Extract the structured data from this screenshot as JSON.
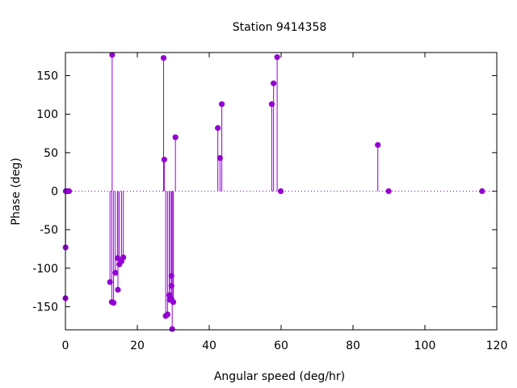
{
  "chart_data": {
    "type": "scatter",
    "style": "impulses with points",
    "title": "Station 9414358",
    "xlabel": "Angular speed (deg/hr)",
    "ylabel": "Phase (deg)",
    "xlim": [
      0,
      120
    ],
    "ylim": [
      -180,
      180
    ],
    "x_ticks": [
      0,
      20,
      40,
      60,
      80,
      100,
      120
    ],
    "y_ticks": [
      -150,
      -100,
      -50,
      0,
      50,
      100,
      150
    ],
    "zero_line": "dotted",
    "grid": false,
    "legend": "none",
    "color": "#9400d3",
    "series": [
      {
        "points": [
          {
            "x": 0.0,
            "y": -139
          },
          {
            "x": 0.04,
            "y": -73
          },
          {
            "x": 0.08,
            "y": 0
          },
          {
            "x": 0.5,
            "y": 0
          },
          {
            "x": 1.0,
            "y": 0
          },
          {
            "x": 12.4,
            "y": -118
          },
          {
            "x": 12.9,
            "y": -144
          },
          {
            "x": 13.0,
            "y": 177
          },
          {
            "x": 13.4,
            "y": -145
          },
          {
            "x": 13.9,
            "y": -106
          },
          {
            "x": 14.5,
            "y": -87
          },
          {
            "x": 14.6,
            "y": -128
          },
          {
            "x": 15.0,
            "y": -95
          },
          {
            "x": 15.6,
            "y": -91
          },
          {
            "x": 16.1,
            "y": -86
          },
          {
            "x": 27.3,
            "y": 173
          },
          {
            "x": 27.5,
            "y": 41
          },
          {
            "x": 27.9,
            "y": -162
          },
          {
            "x": 28.4,
            "y": -160
          },
          {
            "x": 28.9,
            "y": -135
          },
          {
            "x": 29.0,
            "y": -141
          },
          {
            "x": 29.5,
            "y": -140
          },
          {
            "x": 29.5,
            "y": -110
          },
          {
            "x": 29.5,
            "y": -123
          },
          {
            "x": 29.7,
            "y": -179
          },
          {
            "x": 30.0,
            "y": -144
          },
          {
            "x": 30.6,
            "y": 70
          },
          {
            "x": 42.4,
            "y": 82
          },
          {
            "x": 43.0,
            "y": 43
          },
          {
            "x": 43.5,
            "y": 113
          },
          {
            "x": 57.4,
            "y": 113
          },
          {
            "x": 57.9,
            "y": 140
          },
          {
            "x": 58.9,
            "y": 174
          },
          {
            "x": 59.9,
            "y": 0
          },
          {
            "x": 86.9,
            "y": 60
          },
          {
            "x": 89.9,
            "y": 0
          },
          {
            "x": 115.9,
            "y": 0
          }
        ]
      }
    ]
  }
}
